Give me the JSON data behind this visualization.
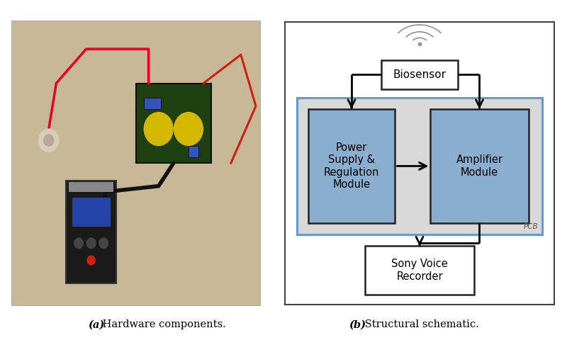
{
  "fig_width": 8.0,
  "fig_height": 4.8,
  "dpi": 100,
  "bg_color": "#ffffff",
  "photo_bg": "#c8b896",
  "pcb_bg": "#d8d8d8",
  "pcb_border": "#6699cc",
  "box_fill": "#8aaece",
  "box_border": "#222222",
  "biosensor_label": "Biosensor",
  "power_label": "Power\nSupply &\nRegulation\nModule",
  "amplifier_label": "Amplifier\nModule",
  "recorder_label": "Sony Voice\nRecorder",
  "pcb_label": "PCB",
  "caption_a_bold": "(a)",
  "caption_a_rest": " Hardware components.",
  "caption_b_bold": "(b)",
  "caption_b_rest": " Structural schematic.",
  "caption_fontsize": 10.5
}
